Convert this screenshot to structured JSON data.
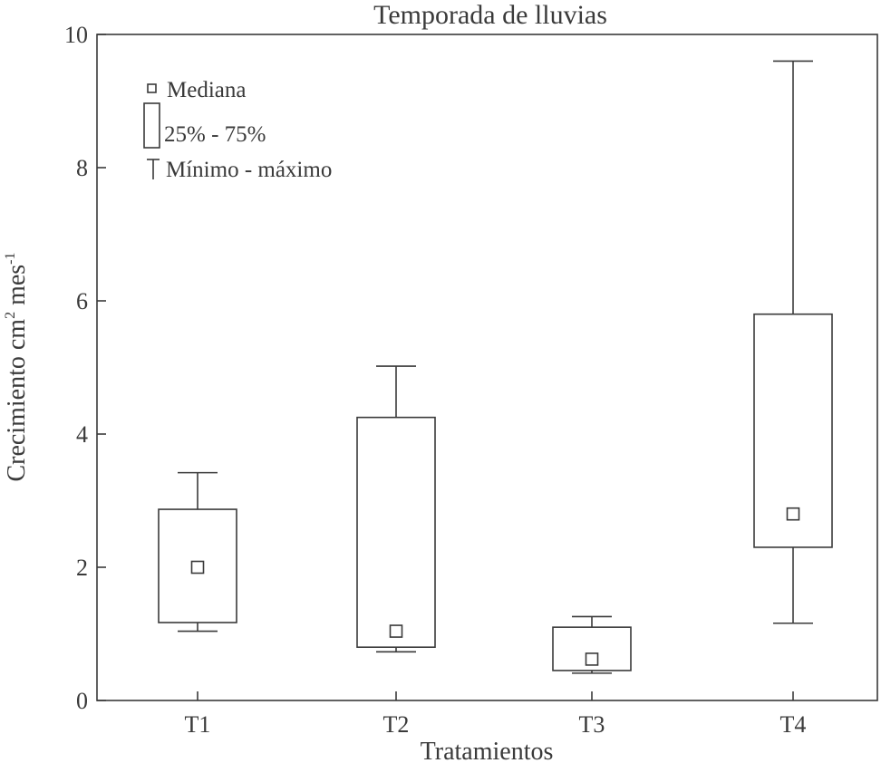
{
  "chart_data": {
    "type": "box",
    "title": "Temporada de lluvias",
    "xlabel": "Tratamientos",
    "ylabel": "Crecimiento cm",
    "ylabel_sup1": "2",
    "ylabel_mid": " mes",
    "ylabel_sup2": "-1",
    "ylim": [
      0,
      10
    ],
    "yticks": [
      "0",
      "2",
      "4",
      "6",
      "8",
      "10"
    ],
    "grid": false,
    "legend_position": "top-left",
    "legend": {
      "median": "Mediana",
      "box": "25% - 75%",
      "range": "Mínimo - máximo"
    },
    "categories": [
      "T1",
      "T2",
      "T3",
      "T4"
    ],
    "boxes": [
      {
        "min": 1.04,
        "q1": 1.17,
        "median": 2.0,
        "q3": 2.87,
        "max": 3.42
      },
      {
        "min": 0.73,
        "q1": 0.8,
        "median": 1.04,
        "q3": 4.25,
        "max": 5.02
      },
      {
        "min": 0.41,
        "q1": 0.45,
        "median": 0.62,
        "q3": 1.1,
        "max": 1.26
      },
      {
        "min": 1.16,
        "q1": 2.3,
        "median": 2.8,
        "q3": 5.8,
        "max": 9.6
      }
    ]
  }
}
